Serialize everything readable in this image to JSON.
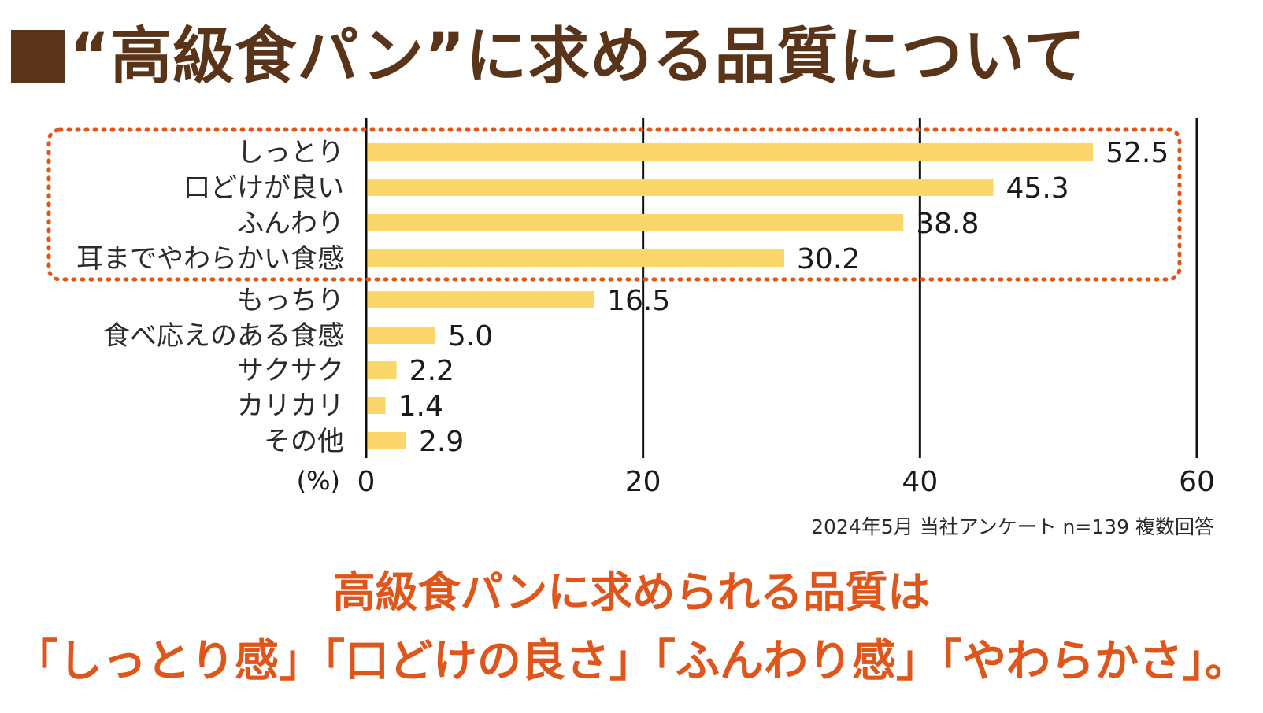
{
  "title": "“高級食パン”に求める品質について",
  "chart_data": {
    "type": "bar",
    "orientation": "horizontal",
    "categories": [
      "しっとり",
      "口どけが良い",
      "ふんわり",
      "耳までやわらかい食感",
      "もっちり",
      "食べ応えのある食感",
      "サクサク",
      "カリカリ",
      "その他"
    ],
    "values": [
      52.5,
      45.3,
      38.8,
      30.2,
      16.5,
      5.0,
      2.2,
      1.4,
      2.9
    ],
    "value_labels": [
      "52.5",
      "45.3",
      "38.8",
      "30.2",
      "16.5",
      "5.0",
      "2.2",
      "1.4",
      "2.9"
    ],
    "xlim": [
      0,
      60
    ],
    "xticks": [
      "0",
      "20",
      "40",
      "60"
    ],
    "unit_label": "(%)",
    "highlighted_count": 4,
    "grid": true
  },
  "colors": {
    "bar": "#fbd66a",
    "title": "#5a3418",
    "highlight_border": "#e0561a",
    "conclusion": "#e0561a"
  },
  "source_note": "2024年5月 当社アンケート n=139 複数回答",
  "conclusion": {
    "line1": "高級食パンに求められる品質は",
    "line2": "「しっとり感」「口どけの良さ」「ふんわり感」「やわらかさ」。"
  }
}
